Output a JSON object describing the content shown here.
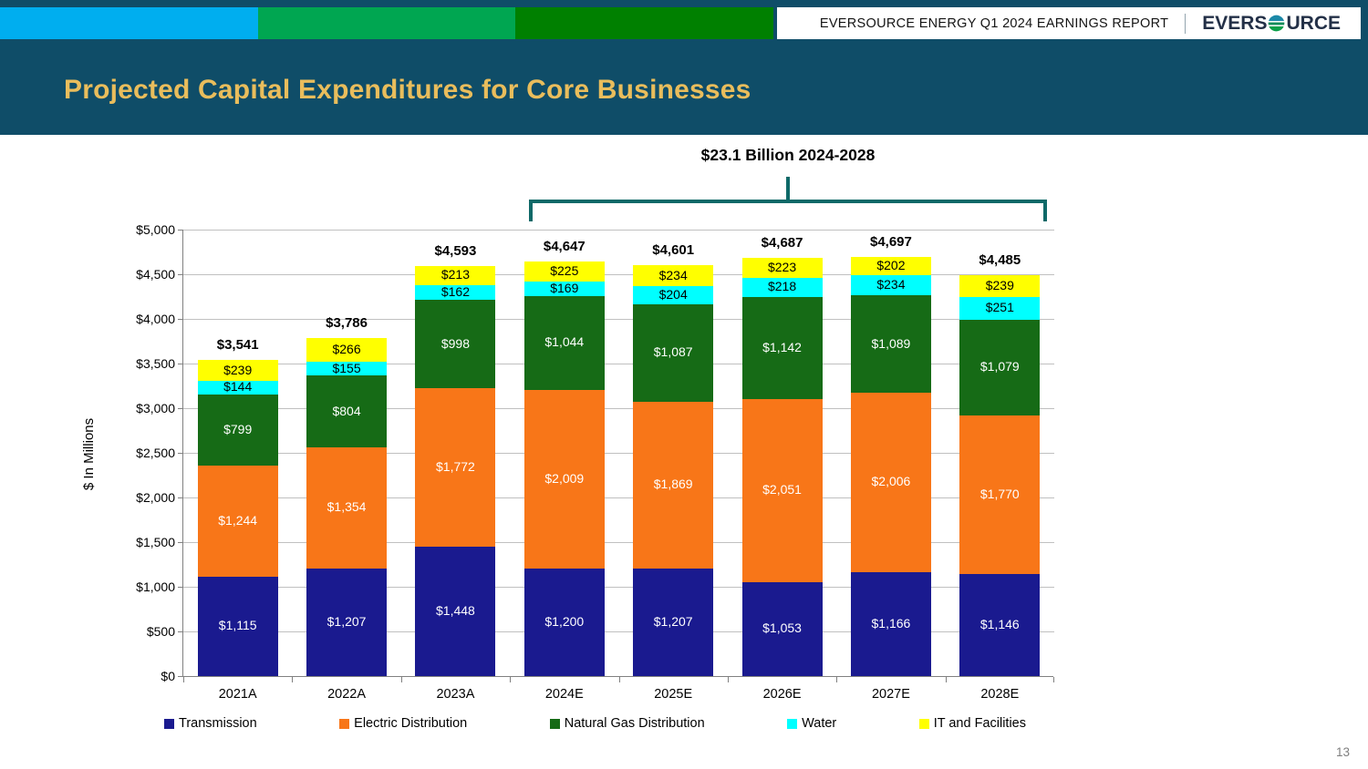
{
  "page": {
    "page_number": "13"
  },
  "top_banner": {
    "report_title": "EVERSOURCE ENERGY Q1 2024 EARNINGS REPORT",
    "logo_left": "EVERS",
    "logo_right": "URCE",
    "strip_colors": [
      "#00AEEF",
      "#00A651",
      "#008000"
    ],
    "band_color": "#0F4D68"
  },
  "header": {
    "title": "Projected Capital Expenditures for Core Businesses",
    "title_color": "#E9BD5C",
    "band_color": "#0F4D68"
  },
  "chart_data": {
    "type": "bar",
    "stacked": true,
    "title": "$23.1 Billion 2024-2028",
    "bracket": {
      "from_category": "2024E",
      "to_category": "2028E",
      "color": "#0E6968"
    },
    "ylabel": "$ In Millions",
    "ylim": [
      0,
      5000
    ],
    "ytick_interval": 500,
    "ytick_labels": [
      "$0",
      "$500",
      "$1,000",
      "$1,500",
      "$2,000",
      "$2,500",
      "$3,000",
      "$3,500",
      "$4,000",
      "$4,500",
      "$5,000"
    ],
    "grid": true,
    "legend_position": "bottom",
    "categories": [
      "2021A",
      "2022A",
      "2023A",
      "2024E",
      "2025E",
      "2026E",
      "2027E",
      "2028E"
    ],
    "series": [
      {
        "name": "Transmission",
        "color": "#1A1A8F",
        "label_color": "#FFFFFF",
        "values": [
          1115,
          1207,
          1448,
          1200,
          1207,
          1053,
          1166,
          1146
        ]
      },
      {
        "name": "Electric Distribution",
        "color": "#F87618",
        "label_color": "#FFFFFF",
        "values": [
          1244,
          1354,
          1772,
          2009,
          1869,
          2051,
          2006,
          1770
        ]
      },
      {
        "name": "Natural Gas Distribution",
        "color": "#166B16",
        "label_color": "#FFFFFF",
        "values": [
          799,
          804,
          998,
          1044,
          1087,
          1142,
          1089,
          1079
        ]
      },
      {
        "name": "Water",
        "color": "#00FFFF",
        "label_color": "#000000",
        "values": [
          144,
          155,
          162,
          169,
          204,
          218,
          234,
          251
        ]
      },
      {
        "name": "IT and Facilities",
        "color": "#FFFF00",
        "label_color": "#000000",
        "values": [
          239,
          266,
          213,
          225,
          234,
          223,
          202,
          239
        ]
      }
    ],
    "totals": [
      "$3,541",
      "$3,786",
      "$4,593",
      "$4,647",
      "$4,601",
      "$4,687",
      "$4,697",
      "$4,485"
    ]
  }
}
